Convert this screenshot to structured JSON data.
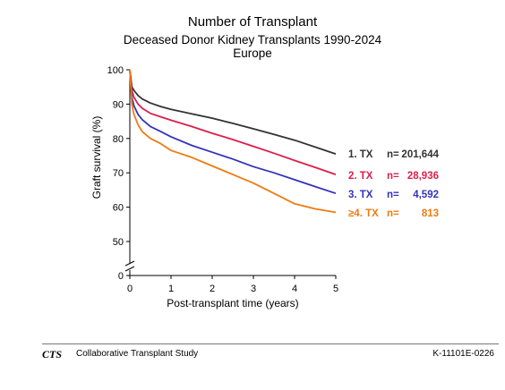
{
  "chart_data": {
    "type": "line",
    "title": "Number of Transplant",
    "subtitle": "Deceased Donor Kidney Transplants 1990-2024",
    "region": "Europe",
    "xlabel": "Post-transplant time (years)",
    "ylabel": "Graft survival (%)",
    "xlim": [
      0,
      5
    ],
    "ylim": [
      0,
      100
    ],
    "xticks": [
      "0",
      "1",
      "2",
      "3",
      "4",
      "5"
    ],
    "yticks": [
      "0",
      "50",
      "60",
      "70",
      "80",
      "90",
      "100"
    ],
    "axis_break": true,
    "grid": false,
    "legend_position": "right",
    "series": [
      {
        "name": "1. TX",
        "n_label": "n=",
        "n_value": "201,644",
        "color": "#333333",
        "x": [
          0,
          0.05,
          0.1,
          0.2,
          0.3,
          0.5,
          0.75,
          1,
          1.5,
          2,
          2.5,
          3,
          3.5,
          4,
          4.5,
          5
        ],
        "y": [
          100,
          95,
          94,
          92.5,
          91.5,
          90.3,
          89.3,
          88.5,
          87.2,
          85.9,
          84.4,
          82.8,
          81.2,
          79.5,
          77.5,
          75.5
        ]
      },
      {
        "name": "2. TX",
        "n_label": "n=",
        "n_value": "28,936",
        "color": "#dc1e4b",
        "x": [
          0,
          0.05,
          0.1,
          0.2,
          0.3,
          0.5,
          0.75,
          1,
          1.5,
          2,
          2.5,
          3,
          3.5,
          4,
          4.5,
          5
        ],
        "y": [
          100,
          94,
          92,
          90,
          88.8,
          87.3,
          86.3,
          85.3,
          83.5,
          81.5,
          79.7,
          77.7,
          75.7,
          73.6,
          71.6,
          69.5
        ]
      },
      {
        "name": "3. TX",
        "n_label": "n=",
        "n_value": "4,592",
        "color": "#3333bb",
        "x": [
          0,
          0.05,
          0.1,
          0.2,
          0.3,
          0.5,
          0.75,
          1,
          1.5,
          2,
          2.5,
          3,
          3.5,
          4,
          4.5,
          5
        ],
        "y": [
          100,
          92,
          89.5,
          87,
          85.5,
          83.5,
          82,
          80.5,
          78,
          76,
          74,
          71.8,
          70,
          68,
          66,
          64
        ]
      },
      {
        "name": "≥4. TX",
        "n_label": "n=",
        "n_value": "813",
        "color": "#f07a10",
        "x": [
          0,
          0.05,
          0.1,
          0.2,
          0.3,
          0.5,
          0.75,
          1,
          1.5,
          2,
          2.5,
          3,
          3.5,
          4,
          4.5,
          5
        ],
        "y": [
          100,
          90,
          87,
          84,
          82,
          80,
          78.5,
          76.5,
          74.5,
          72,
          69.5,
          67,
          64,
          61,
          59.5,
          58.5
        ]
      }
    ]
  },
  "footer": {
    "logo": "CTS",
    "name": "Collaborative Transplant Study",
    "code": "K-11101E-0226"
  }
}
